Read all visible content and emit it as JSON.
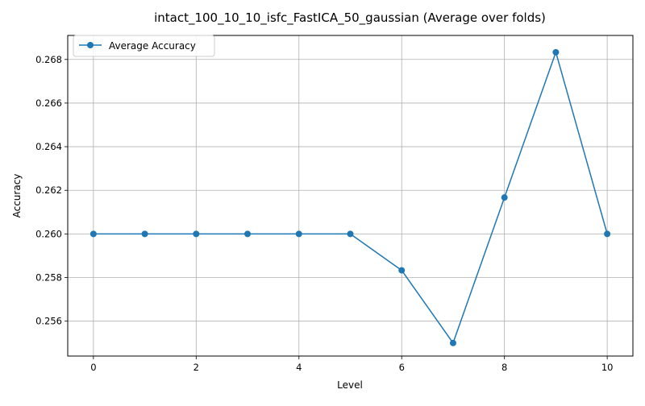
{
  "chart_data": {
    "type": "line",
    "title": "intact_100_10_10_isfc_FastICA_50_gaussian (Average over folds)",
    "xlabel": "Level",
    "ylabel": "Accuracy",
    "x": [
      0,
      1,
      2,
      3,
      4,
      5,
      6,
      7,
      8,
      9,
      10
    ],
    "xlim": [
      -0.5,
      10.5
    ],
    "ylim": [
      0.2544,
      0.2691
    ],
    "xticks": [
      0,
      2,
      4,
      6,
      8,
      10
    ],
    "xtick_labels": [
      "0",
      "2",
      "4",
      "6",
      "8",
      "10"
    ],
    "yticks": [
      0.256,
      0.258,
      0.26,
      0.262,
      0.264,
      0.266,
      0.268
    ],
    "ytick_labels": [
      "0.256",
      "0.258",
      "0.260",
      "0.262",
      "0.264",
      "0.266",
      "0.268"
    ],
    "grid": true,
    "legend_position": "upper-left",
    "series": [
      {
        "name": "Average Accuracy",
        "color": "#1f77b4",
        "marker": "circle",
        "values": [
          0.26,
          0.26,
          0.26,
          0.26,
          0.26,
          0.26,
          0.25833,
          0.255,
          0.26167,
          0.26833,
          0.26
        ]
      }
    ]
  }
}
